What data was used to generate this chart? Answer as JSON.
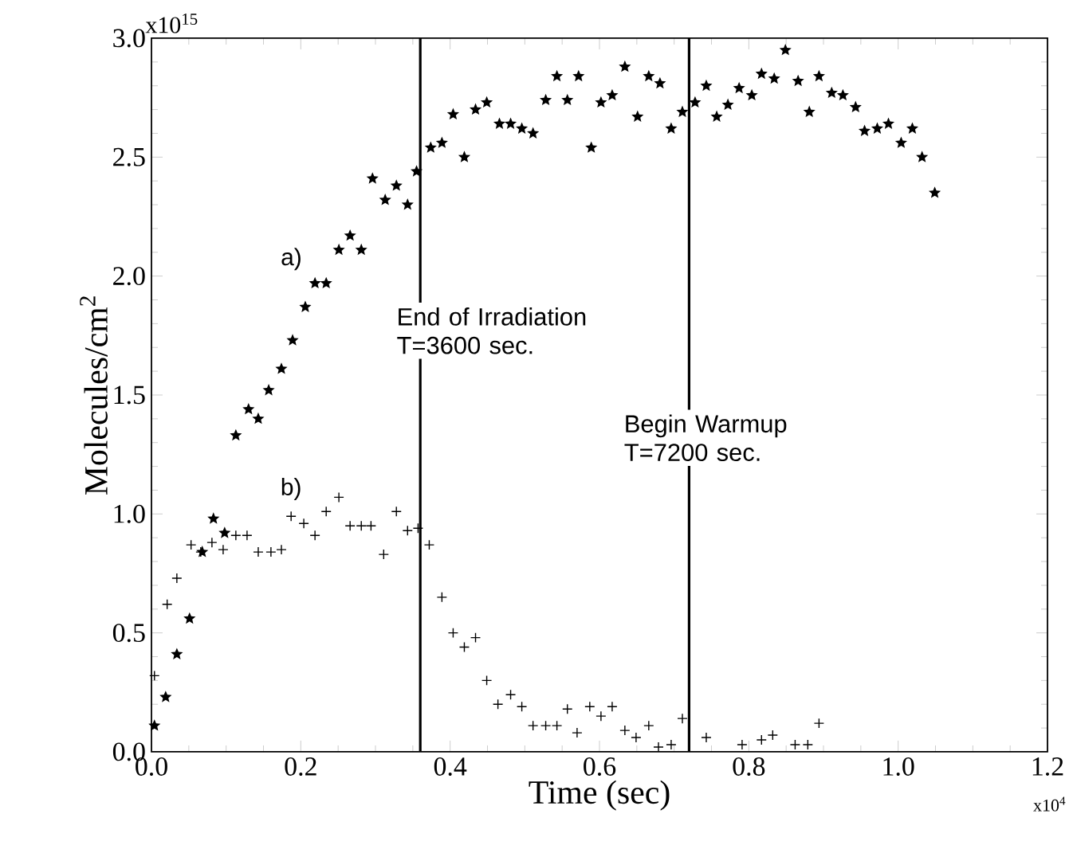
{
  "chart_data": {
    "type": "scatter",
    "xlabel": "Time (sec)",
    "ylabel": "Molecules/cm$^{2}$",
    "xlim": [
      0,
      1.2
    ],
    "ylim": [
      0,
      3.0
    ],
    "xticks": [
      {
        "value": 0,
        "label": "0.0"
      },
      {
        "value": 0.2,
        "label": "0.2"
      },
      {
        "value": 0.4,
        "label": "0.4"
      },
      {
        "value": 0.6,
        "label": "0.6"
      },
      {
        "value": 0.8,
        "label": "0.8"
      },
      {
        "value": 1.0,
        "label": "1.0"
      },
      {
        "value": 1.2,
        "label": "1.2"
      }
    ],
    "yticks": [
      {
        "value": 0,
        "label": "0.0"
      },
      {
        "value": 0.5,
        "label": "0.5"
      },
      {
        "value": 1.0,
        "label": "1.0"
      },
      {
        "value": 1.5,
        "label": "1.5"
      },
      {
        "value": 2.0,
        "label": "2.0"
      },
      {
        "value": 2.5,
        "label": "2.5"
      },
      {
        "value": 3.0,
        "label": "3.0"
      }
    ],
    "grid": false,
    "series": [
      {
        "name": "a)",
        "color": "#000000",
        "marker": "star",
        "x": [
          0.004,
          0.019,
          0.034,
          0.051,
          0.068,
          0.083,
          0.098,
          0.113,
          0.13,
          0.143,
          0.157,
          0.174,
          0.189,
          0.206,
          0.219,
          0.234,
          0.251,
          0.266,
          0.281,
          0.296,
          0.313,
          0.328,
          0.343,
          0.355,
          0.374,
          0.389,
          0.404,
          0.419,
          0.434,
          0.449,
          0.466,
          0.481,
          0.496,
          0.511,
          0.528,
          0.543,
          0.557,
          0.572,
          0.589,
          0.602,
          0.617,
          0.634,
          0.651,
          0.666,
          0.681,
          0.696,
          0.711,
          0.728,
          0.743,
          0.757,
          0.772,
          0.787,
          0.804,
          0.817,
          0.834,
          0.849,
          0.866,
          0.881,
          0.894,
          0.911,
          0.926,
          0.943,
          0.955,
          0.972,
          0.987,
          1.004,
          1.019,
          1.032,
          1.049
        ],
        "values": [
          0.11,
          0.23,
          0.41,
          0.56,
          0.84,
          0.98,
          0.92,
          1.33,
          1.44,
          1.4,
          1.52,
          1.61,
          1.73,
          1.87,
          1.97,
          1.97,
          2.11,
          2.17,
          2.11,
          2.41,
          2.32,
          2.38,
          2.3,
          2.44,
          2.54,
          2.56,
          2.68,
          2.5,
          2.7,
          2.73,
          2.64,
          2.64,
          2.62,
          2.6,
          2.74,
          2.84,
          2.74,
          2.84,
          2.54,
          2.73,
          2.76,
          2.88,
          2.67,
          2.84,
          2.81,
          2.62,
          2.69,
          2.73,
          2.8,
          2.67,
          2.72,
          2.79,
          2.76,
          2.85,
          2.83,
          2.95,
          2.82,
          2.69,
          2.84,
          2.77,
          2.76,
          2.71,
          2.61,
          2.62,
          2.64,
          2.56,
          2.62,
          2.5,
          2.35
        ]
      },
      {
        "name": "b)",
        "color": "#000000",
        "marker": "cross",
        "x": [
          0.004,
          0.021,
          0.034,
          0.053,
          0.066,
          0.081,
          0.096,
          0.113,
          0.128,
          0.143,
          0.16,
          0.174,
          0.187,
          0.204,
          0.219,
          0.234,
          0.251,
          0.266,
          0.281,
          0.294,
          0.311,
          0.328,
          0.343,
          0.357,
          0.372,
          0.389,
          0.404,
          0.419,
          0.434,
          0.449,
          0.464,
          0.481,
          0.496,
          0.511,
          0.528,
          0.543,
          0.557,
          0.57,
          0.587,
          0.602,
          0.617,
          0.634,
          0.649,
          0.666,
          0.679,
          0.696,
          0.711,
          0.743,
          0.791,
          0.817,
          0.832,
          0.862,
          0.879,
          0.894
        ],
        "values": [
          0.32,
          0.62,
          0.73,
          0.87,
          0.84,
          0.88,
          0.85,
          0.91,
          0.91,
          0.84,
          0.84,
          0.85,
          0.99,
          0.96,
          0.91,
          1.01,
          1.07,
          0.95,
          0.95,
          0.95,
          0.83,
          1.01,
          0.93,
          0.94,
          0.87,
          0.65,
          0.5,
          0.44,
          0.48,
          0.3,
          0.2,
          0.24,
          0.19,
          0.11,
          0.11,
          0.11,
          0.18,
          0.08,
          0.19,
          0.15,
          0.19,
          0.09,
          0.06,
          0.11,
          0.02,
          0.03,
          0.14,
          0.06,
          0.03,
          0.05,
          0.07,
          0.03,
          0.03,
          0.12
        ]
      }
    ],
    "ref_lines": [
      {
        "axis": "x",
        "value": 0.36,
        "color": "#000000"
      },
      {
        "axis": "x",
        "value": 0.72,
        "color": "#000000"
      }
    ],
    "annotations": [
      "x10$^{15}$",
      "x10$^{4}$",
      "End of Irradiation T=3600 sec.",
      "Begin Warmup T=7200 sec."
    ]
  }
}
